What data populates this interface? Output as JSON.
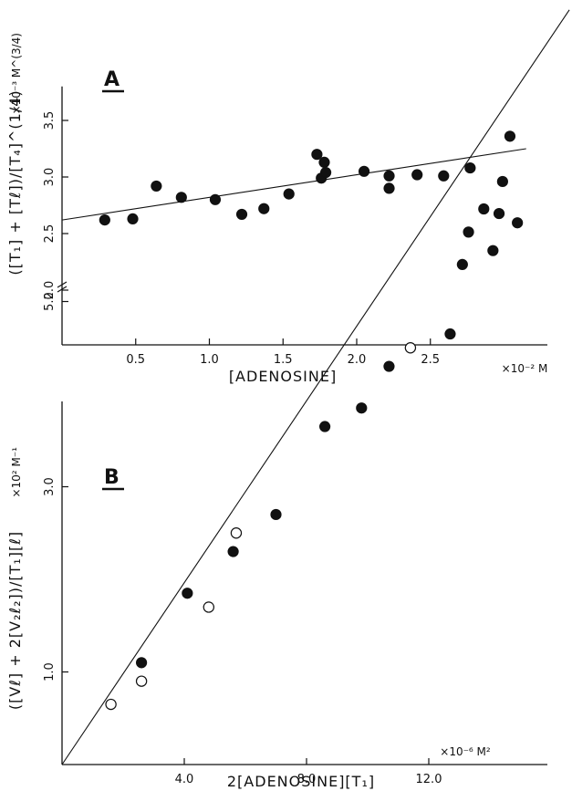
{
  "chart_data": [
    {
      "id": "A",
      "type": "scatter",
      "panel_label": "A",
      "xlabel": "[ADENOSINE]",
      "x_unit": "×10⁻² M",
      "ylabel": "([T₁] + [Tℓ])/[T₄]^(1/4)",
      "y_unit": "×10⁻³ M^(3/4)",
      "xlim": [
        0,
        3.15
      ],
      "ylim": [
        1.5,
        3.8
      ],
      "y_axis_break": true,
      "grid": false,
      "xticks": [
        0.5,
        1.0,
        1.5,
        2.0,
        2.5
      ],
      "xtick_labels": [
        "0.5",
        "1.0",
        "1.5",
        "2.0",
        "2.5"
      ],
      "yticks": [
        2.0,
        2.5,
        3.0,
        3.5
      ],
      "ytick_labels": [
        "2.0",
        "2.5",
        "3.0",
        "3.5"
      ],
      "fit_line": {
        "x": [
          0,
          3.15
        ],
        "y": [
          2.62,
          3.25
        ]
      },
      "series": [
        {
          "marker": "filled",
          "x": [
            0.29,
            0.48,
            0.64,
            0.81,
            1.04,
            1.22,
            1.37,
            1.54,
            1.73,
            1.76,
            1.78,
            1.79,
            2.05,
            2.22,
            2.22,
            2.41,
            2.59,
            2.77,
            2.99,
            3.04
          ],
          "y": [
            2.62,
            2.63,
            2.92,
            2.82,
            2.8,
            2.67,
            2.72,
            2.85,
            3.2,
            2.99,
            3.13,
            3.04,
            3.05,
            3.01,
            2.9,
            3.02,
            3.01,
            3.08,
            2.96,
            3.36
          ]
        }
      ]
    },
    {
      "id": "B",
      "type": "scatter",
      "panel_label": "B",
      "xlabel": "2[ADENOSINE][T₁]",
      "x_unit": "×10⁻⁶ M²",
      "ylabel": "([Vℓ] + 2[V₂ℓ₂])/[T₁][ℓ]",
      "y_unit": "×10² M⁻¹",
      "xlim": [
        0,
        17
      ],
      "ylim": [
        0,
        8.1
      ],
      "grid": false,
      "xticks": [
        4.0,
        8.0,
        12.0
      ],
      "xtick_labels": [
        "4.0",
        "8.0",
        "12.0"
      ],
      "yticks": [
        1.0,
        3.0,
        5.0
      ],
      "ytick_labels": [
        "1.0",
        "3.0",
        "5.0"
      ],
      "fit_line": {
        "x": [
          0,
          16.6
        ],
        "y": [
          0,
          8.15
        ]
      },
      "series": [
        {
          "marker": "filled",
          "x": [
            2.6,
            4.1,
            5.6,
            7.0,
            8.6,
            9.8,
            10.7,
            12.7,
            13.1,
            13.3,
            13.8,
            14.1,
            14.3,
            14.9
          ],
          "y": [
            1.1,
            1.85,
            2.3,
            2.7,
            3.65,
            3.85,
            4.3,
            4.65,
            5.4,
            5.75,
            6.0,
            5.55,
            5.95,
            5.85
          ]
        },
        {
          "marker": "open",
          "x": [
            1.6,
            2.6,
            4.8,
            5.7,
            11.4
          ],
          "y": [
            0.65,
            0.9,
            1.7,
            2.5,
            4.5
          ]
        }
      ]
    }
  ]
}
